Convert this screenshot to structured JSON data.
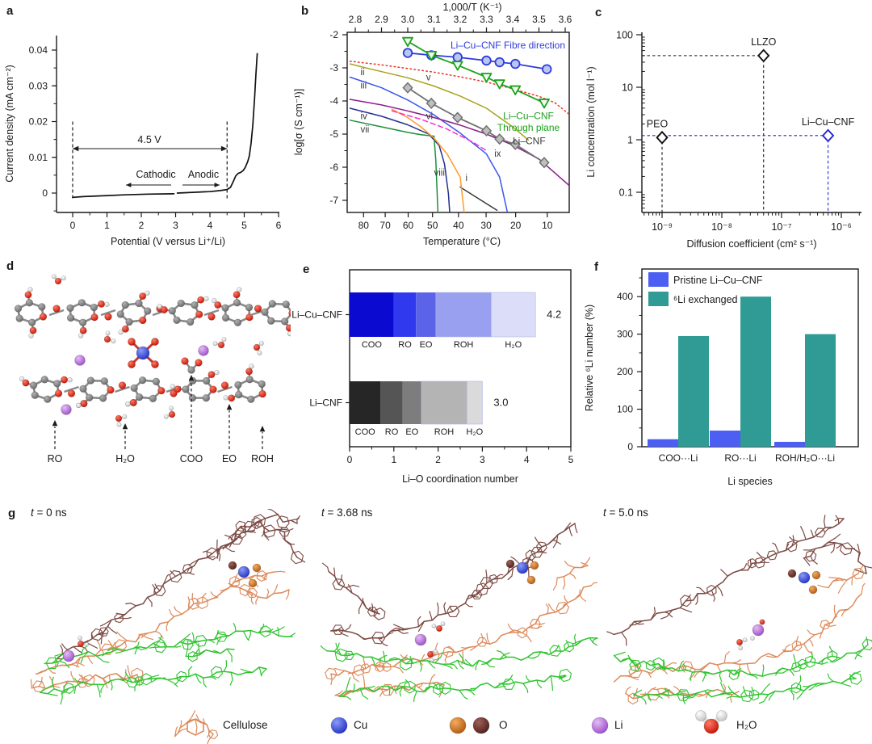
{
  "figure": {
    "panel_letters": [
      "a",
      "b",
      "c",
      "d",
      "e",
      "f",
      "g"
    ],
    "d": {
      "arrow_labels": [
        "RO",
        "H₂O",
        "COO",
        "EO",
        "ROH"
      ]
    },
    "g": {
      "snapshots": [
        "t = 0 ns",
        "t = 3.68 ns",
        "t = 5.0 ns"
      ],
      "legend": [
        {
          "label": "Cellulose",
          "color": "#dd8a5b"
        },
        {
          "label": "Cu",
          "color": "#3b4ed8"
        },
        {
          "label": "O",
          "colors": [
            "#d97b2e",
            "#6b3430"
          ]
        },
        {
          "label": "Li",
          "color": "#bf7fdf"
        },
        {
          "label": "H₂O",
          "colors": [
            "#dd1104",
            "#ffffff"
          ]
        }
      ],
      "chain_colors": {
        "cellulose_dark": "#7b4a44",
        "cellulose_orange": "#dd8a5b",
        "cellulose_green": "#2fc42f"
      }
    }
  },
  "chart_data": [
    {
      "panel": "a",
      "type": "line",
      "xlabel": "Potential (V versus Li⁺/Li)",
      "ylabel": "Current density (mA cm⁻²)",
      "xlim": [
        -0.45,
        6.05
      ],
      "ylim": [
        -0.0054,
        0.0445
      ],
      "xticks": [
        0,
        1,
        2,
        3,
        4,
        5,
        6
      ],
      "yticks": [
        0,
        0.01,
        0.02,
        0.03,
        0.04
      ],
      "ytick_labels": [
        "0",
        "0.01",
        "0.02",
        "0.03",
        "0.04"
      ],
      "series": [
        {
          "name": "cathodic-scan",
          "color": "#111111",
          "x": [
            0,
            0.3,
            0.8,
            1.5,
            2.2,
            2.95
          ],
          "y": [
            -0.0012,
            -0.001,
            -0.0008,
            -0.0005,
            -0.0003,
            -0.0002
          ]
        },
        {
          "name": "anodic-scan",
          "color": "#111111",
          "x": [
            3.05,
            3.5,
            4.0,
            4.3,
            4.5,
            4.6,
            4.68,
            4.75,
            4.82,
            4.9,
            4.97,
            5.03,
            5.1,
            5.15,
            5.2,
            5.25,
            5.3,
            5.34,
            5.38
          ],
          "y": [
            0.0,
            0.0002,
            0.0004,
            0.0007,
            0.001,
            0.0016,
            0.0032,
            0.0048,
            0.0055,
            0.0058,
            0.0063,
            0.0072,
            0.0088,
            0.0105,
            0.014,
            0.019,
            0.0265,
            0.033,
            0.039
          ]
        }
      ],
      "annotations": {
        "voltage_window": "4.5 V",
        "cathodic": "Cathodic",
        "anodic": "Anodic",
        "dashed_x": [
          0,
          4.5
        ]
      }
    },
    {
      "panel": "b",
      "type": "line",
      "top_xlabel": "1,000/T (K⁻¹)",
      "xlabel": "Temperature (°C)",
      "ylabel": "log[σ (S cm⁻¹)]",
      "top_xticks": [
        2.8,
        2.9,
        3.0,
        3.1,
        3.2,
        3.3,
        3.4,
        3.5,
        3.6
      ],
      "bottom_ticks_T": [
        80,
        70,
        60,
        50,
        40,
        30,
        20,
        10
      ],
      "yticks": [
        -2,
        -3,
        -4,
        -5,
        -6,
        -7
      ],
      "xlim": [
        2.769,
        3.615
      ],
      "ylim": [
        -7.37,
        -1.93
      ],
      "series": [
        {
          "name": "Li–Cu–CNF Fibre direction",
          "marker": "circle",
          "color": "#2f3bdc",
          "fill": "#b9c6f2",
          "points": [
            [
              3.0,
              -2.55
            ],
            [
              3.09,
              -2.62
            ],
            [
              3.19,
              -2.68
            ],
            [
              3.3,
              -2.78
            ],
            [
              3.35,
              -2.83
            ],
            [
              3.41,
              -2.88
            ],
            [
              3.53,
              -3.04
            ]
          ]
        },
        {
          "name": "Li–Cu–CNF Through plane",
          "marker": "triangle-down",
          "color": "#1ea11e",
          "fill": "#f0faf0",
          "points": [
            [
              3.0,
              -2.2
            ],
            [
              3.09,
              -2.62
            ],
            [
              3.19,
              -2.92
            ],
            [
              3.3,
              -3.28
            ],
            [
              3.35,
              -3.48
            ],
            [
              3.41,
              -3.66
            ],
            [
              3.52,
              -4.06
            ]
          ]
        },
        {
          "name": "Li–CNF",
          "marker": "diamond",
          "color": "#707070",
          "fill": "#bfbfbf",
          "points": [
            [
              3.0,
              -3.6
            ],
            [
              3.09,
              -4.07
            ],
            [
              3.19,
              -4.5
            ],
            [
              3.3,
              -4.9
            ],
            [
              3.35,
              -5.15
            ],
            [
              3.41,
              -5.31
            ],
            [
              3.52,
              -5.86
            ]
          ]
        }
      ],
      "series_labels": [
        {
          "text": "Li–Cu–CNF Fibre direction",
          "color": "#2f3bdc",
          "at": [
            3.6,
            -2.42
          ],
          "anchor": "end"
        },
        {
          "text": "Li–Cu–CNF",
          "color": "#1ea11e",
          "at": [
            3.46,
            -4.55
          ],
          "anchor": "middle"
        },
        {
          "text": "Through plane",
          "color": "#1ea11e",
          "at": [
            3.46,
            -4.9
          ],
          "anchor": "middle"
        },
        {
          "text": "Li–CNF",
          "color": "#3a3a3a",
          "at": [
            3.4,
            -5.3
          ],
          "anchor": "start"
        }
      ],
      "ref_curves": [
        {
          "id": "i",
          "color": "#3a3a3a",
          "style": "solid",
          "label_at": [
            3.22,
            -6.42
          ],
          "points": [
            [
              3.2,
              -6.6
            ],
            [
              3.34,
              -7.3
            ]
          ]
        },
        {
          "id": "ii",
          "color": "#a8a21c",
          "style": "solid",
          "label_at": [
            2.82,
            -3.22
          ],
          "points": [
            [
              2.78,
              -2.88
            ],
            [
              2.85,
              -3.02
            ],
            [
              3.0,
              -3.3
            ],
            [
              3.1,
              -3.55
            ],
            [
              3.2,
              -3.85
            ],
            [
              3.3,
              -4.22
            ],
            [
              3.4,
              -4.78
            ],
            [
              3.46,
              -5.18
            ]
          ]
        },
        {
          "id": "iii",
          "color": "#3a57e8",
          "style": "solid",
          "label_at": [
            2.82,
            -3.62
          ],
          "points": [
            [
              2.78,
              -3.28
            ],
            [
              2.9,
              -3.6
            ],
            [
              3.0,
              -3.97
            ],
            [
              3.1,
              -4.42
            ],
            [
              3.2,
              -4.97
            ],
            [
              3.3,
              -5.6
            ],
            [
              3.35,
              -6.3
            ],
            [
              3.38,
              -7.37
            ]
          ]
        },
        {
          "id": "iv",
          "color": "#23308f",
          "style": "solid",
          "label_at": [
            2.82,
            -4.55
          ],
          "points": [
            [
              2.78,
              -4.22
            ],
            [
              2.9,
              -4.46
            ],
            [
              3.0,
              -4.72
            ],
            [
              3.08,
              -5.0
            ],
            [
              3.12,
              -5.35
            ],
            [
              3.14,
              -5.9
            ],
            [
              3.155,
              -6.8
            ],
            [
              3.16,
              -7.37
            ]
          ]
        },
        {
          "id": "v",
          "color": "#f03224",
          "style": "dotted",
          "label_at": [
            3.07,
            -3.38
          ],
          "points": [
            [
              2.78,
              -2.8
            ],
            [
              2.9,
              -2.91
            ],
            [
              3.0,
              -3.02
            ],
            [
              3.1,
              -3.13
            ],
            [
              3.2,
              -3.27
            ],
            [
              3.3,
              -3.43
            ],
            [
              3.4,
              -3.63
            ],
            [
              3.5,
              -3.86
            ],
            [
              3.56,
              -4.05
            ],
            [
              3.615,
              -4.4
            ]
          ]
        },
        {
          "id": "vi",
          "color": "#8a1f8a",
          "style": "solid",
          "label_at": [
            3.07,
            -4.55
          ],
          "points": [
            [
              2.78,
              -3.95
            ],
            [
              2.9,
              -4.12
            ],
            [
              3.0,
              -4.3
            ],
            [
              3.1,
              -4.5
            ],
            [
              3.2,
              -4.73
            ],
            [
              3.3,
              -5.0
            ],
            [
              3.4,
              -5.33
            ],
            [
              3.5,
              -5.75
            ],
            [
              3.615,
              -6.55
            ]
          ]
        },
        {
          "id": "vii",
          "color": "#1f8f3c",
          "style": "solid",
          "label_at": [
            2.82,
            -4.95
          ],
          "points": [
            [
              2.78,
              -4.58
            ],
            [
              2.9,
              -4.78
            ],
            [
              3.0,
              -4.95
            ],
            [
              3.05,
              -5.02
            ],
            [
              3.1,
              -5.06
            ],
            [
              3.107,
              -5.8
            ],
            [
              3.115,
              -7.37
            ]
          ]
        },
        {
          "id": "viii",
          "color": "#ff9b2a",
          "style": "solid",
          "label_at": [
            3.1,
            -6.25
          ],
          "points": [
            [
              2.94,
              -4.25
            ],
            [
              3.0,
              -4.5
            ],
            [
              3.05,
              -4.78
            ],
            [
              3.1,
              -5.12
            ],
            [
              3.15,
              -5.6
            ],
            [
              3.2,
              -6.3
            ],
            [
              3.215,
              -7.37
            ]
          ]
        },
        {
          "id": "ix",
          "color": "#ff2ad4",
          "style": "dashed",
          "label_at": [
            3.33,
            -5.68
          ],
          "points": [
            [
              2.94,
              -4.3
            ],
            [
              3.05,
              -4.55
            ],
            [
              3.15,
              -4.85
            ],
            [
              3.25,
              -5.25
            ],
            [
              3.3,
              -5.5
            ]
          ]
        }
      ]
    },
    {
      "panel": "c",
      "type": "scatter",
      "xlabel": "Diffusion coefficient (cm² s⁻¹)",
      "ylabel": "Li concentration (mol l⁻¹)",
      "xtick_labels": [
        "10⁻⁹",
        "10⁻⁸",
        "10⁻⁷",
        "10⁻⁶"
      ],
      "xtick_exponents": [
        -9,
        -8,
        -7,
        -6
      ],
      "ytick_labels": [
        "0.1",
        "1",
        "10",
        "100"
      ],
      "ytick_values": [
        0.1,
        1,
        10,
        100
      ],
      "points": [
        {
          "name": "PEO",
          "x": 1e-09,
          "y": 1.1,
          "color": "#111111"
        },
        {
          "name": "LLZO",
          "x": 5e-08,
          "y": 40,
          "color": "#111111"
        },
        {
          "name": "Li–Cu–CNF",
          "x": 6e-07,
          "y": 1.2,
          "color": "#2525dd"
        }
      ]
    },
    {
      "panel": "e",
      "type": "stacked-hbar",
      "xlabel": "Li–O coordination number",
      "xticks": [
        0,
        1,
        2,
        3,
        4,
        5
      ],
      "xlim": [
        0,
        5
      ],
      "segment_names": [
        "COO",
        "RO",
        "EO",
        "ROH",
        "H₂O"
      ],
      "rows": [
        {
          "label": "Li–Cu–CNF",
          "total_label": "4.2",
          "values": [
            1.0,
            0.5,
            0.45,
            1.25,
            1.0
          ],
          "colors": [
            "#0a0ad0",
            "#3139ee",
            "#5b63e8",
            "#9aa0f0",
            "#dcdef9"
          ]
        },
        {
          "label": "Li–CNF",
          "total_label": "3.0",
          "values": [
            0.7,
            0.5,
            0.42,
            1.03,
            0.35
          ],
          "colors": [
            "#262626",
            "#555555",
            "#7d7d7d",
            "#b4b4b4",
            "#dadada"
          ]
        }
      ]
    },
    {
      "panel": "f",
      "type": "bar",
      "xlabel": "Li species",
      "ylabel": "Relative ⁶Li number (%)",
      "categories": [
        "COO···Li",
        "RO···Li",
        "ROH/H₂O···Li"
      ],
      "yticks": [
        0,
        100,
        200,
        300,
        400
      ],
      "ylim": [
        0,
        474
      ],
      "series": [
        {
          "name": "Pristine Li–Cu–CNF",
          "color": "#4d5ef2",
          "values": [
            20,
            43,
            13
          ]
        },
        {
          "name": "⁶Li exchanged",
          "color": "#2f9b94",
          "values": [
            295,
            400,
            300
          ]
        }
      ]
    }
  ]
}
